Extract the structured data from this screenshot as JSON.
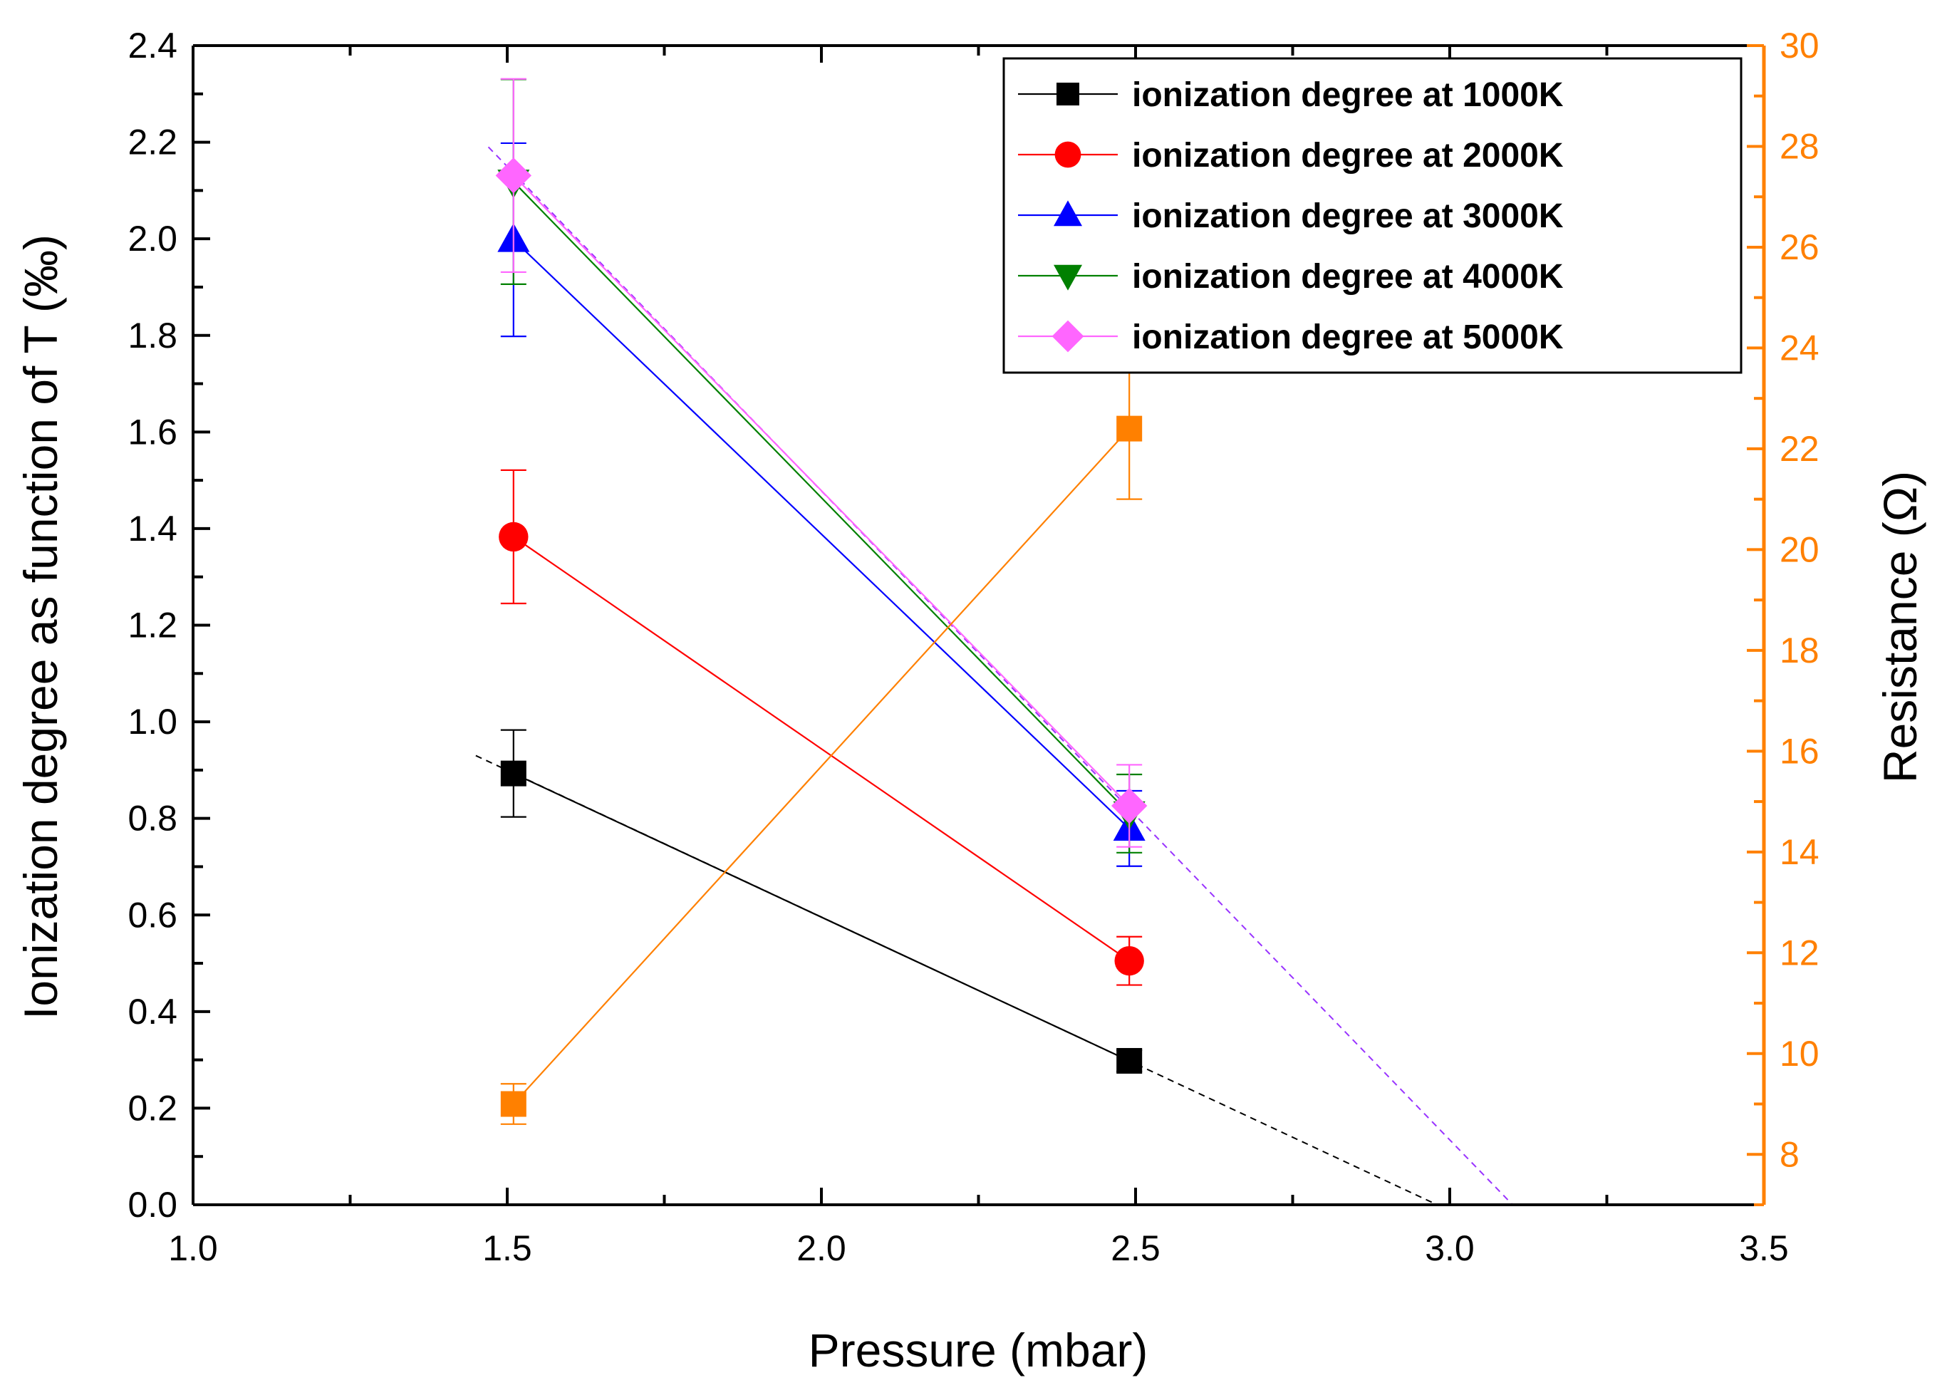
{
  "chart_data": {
    "type": "line",
    "xlabel": "Pressure (mbar)",
    "ylabel": "Ionization degree as function of T (‰)",
    "y2label": "Resistance (Ω)",
    "xlim": [
      1.0,
      3.5
    ],
    "ylim": [
      0.0,
      2.4
    ],
    "y2lim": [
      7,
      30
    ],
    "xticks": [
      "1.0",
      "1.5",
      "2.0",
      "2.5",
      "3.0",
      "3.5"
    ],
    "yticks": [
      "0.0",
      "0.2",
      "0.4",
      "0.6",
      "0.8",
      "1.0",
      "1.2",
      "1.4",
      "1.6",
      "1.8",
      "2.0",
      "2.2",
      "2.4"
    ],
    "y2ticks": [
      "8",
      "10",
      "12",
      "14",
      "16",
      "18",
      "20",
      "22",
      "24",
      "26",
      "28",
      "30"
    ],
    "legend_position": "top-right",
    "grid": false,
    "series": [
      {
        "name": "ionization degree at 1000K",
        "color": "#000000",
        "marker": "square",
        "axis": "left",
        "x": [
          1.51,
          2.49
        ],
        "values": [
          0.893,
          0.298
        ],
        "err": [
          0.09,
          0.022
        ]
      },
      {
        "name": "ionization degree at 2000K",
        "color": "#ff0000",
        "marker": "circle",
        "axis": "left",
        "x": [
          1.51,
          2.49
        ],
        "values": [
          1.383,
          0.505
        ],
        "err": [
          0.138,
          0.05
        ]
      },
      {
        "name": "ionization degree at 3000K",
        "color": "#0000ff",
        "marker": "triangle-up",
        "axis": "left",
        "x": [
          1.51,
          2.49
        ],
        "values": [
          1.998,
          0.779
        ],
        "err": [
          0.2,
          0.078
        ]
      },
      {
        "name": "ionization degree at 4000K",
        "color": "#008000",
        "marker": "triangle-down",
        "axis": "left",
        "x": [
          1.51,
          2.49
        ],
        "values": [
          2.118,
          0.81
        ],
        "err": [
          0.212,
          0.081
        ]
      },
      {
        "name": "ionization degree at 5000K",
        "color": "#ff66ff",
        "marker": "diamond",
        "axis": "left",
        "x": [
          1.51,
          2.49
        ],
        "values": [
          2.131,
          0.826
        ],
        "err": [
          0.2,
          0.085
        ]
      },
      {
        "name": "Resistance",
        "color": "#ff8000",
        "marker": "square",
        "axis": "right",
        "in_legend": false,
        "x": [
          1.51,
          2.49
        ],
        "values": [
          9.0,
          22.4
        ],
        "err": [
          0.4,
          1.4
        ]
      }
    ],
    "fit_lines": [
      {
        "color": "#000000",
        "dash": "dashed",
        "x": [
          1.45,
          2.98
        ],
        "y": [
          0.93,
          0.0
        ]
      },
      {
        "color": "#9933ff",
        "dash": "dashed",
        "x": [
          1.47,
          3.1
        ],
        "y": [
          2.19,
          0.0
        ]
      }
    ]
  }
}
